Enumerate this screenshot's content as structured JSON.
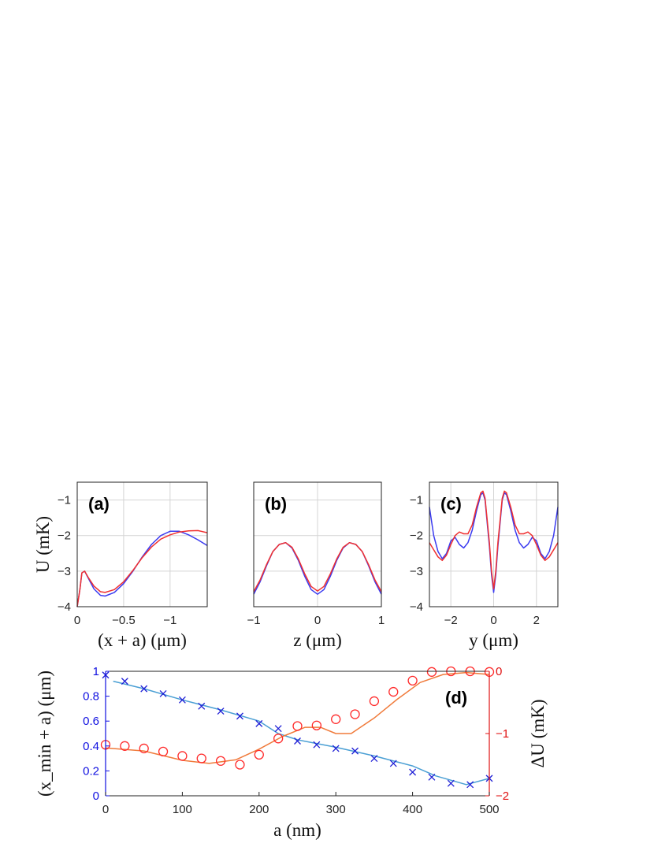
{
  "chart_data": [
    {
      "id": "a",
      "type": "line",
      "panel_label": "(a)",
      "xlabel": "(x + a) (μm)",
      "ylabel": "U (mK)",
      "xlim": [
        0,
        -1.4
      ],
      "ylim": [
        -4,
        -0.5
      ],
      "xticks": [
        0,
        -0.5,
        -1
      ],
      "xtick_labels": [
        "0",
        "−0.5",
        "−1"
      ],
      "yticks": [
        -4,
        -3,
        -2,
        -1
      ],
      "ytick_labels": [
        "−4",
        "−3",
        "−2",
        "−1"
      ],
      "grid": true,
      "series": [
        {
          "color": "#3b3bf0",
          "x": [
            0.0,
            -0.03,
            -0.05,
            -0.08,
            -0.12,
            -0.18,
            -0.25,
            -0.3,
            -0.4,
            -0.5,
            -0.6,
            -0.7,
            -0.8,
            -0.9,
            -1.0,
            -1.1,
            -1.2,
            -1.3,
            -1.4
          ],
          "y": [
            -4.0,
            -3.5,
            -3.05,
            -3.0,
            -3.2,
            -3.5,
            -3.68,
            -3.7,
            -3.6,
            -3.35,
            -3.0,
            -2.6,
            -2.25,
            -2.0,
            -1.88,
            -1.88,
            -1.98,
            -2.12,
            -2.28
          ]
        },
        {
          "color": "#f03030",
          "x": [
            0.0,
            -0.03,
            -0.05,
            -0.08,
            -0.12,
            -0.18,
            -0.25,
            -0.3,
            -0.4,
            -0.5,
            -0.6,
            -0.7,
            -0.8,
            -0.9,
            -1.0,
            -1.1,
            -1.2,
            -1.3,
            -1.4
          ],
          "y": [
            -4.0,
            -3.5,
            -3.05,
            -3.0,
            -3.18,
            -3.42,
            -3.58,
            -3.6,
            -3.52,
            -3.3,
            -2.98,
            -2.62,
            -2.32,
            -2.1,
            -1.98,
            -1.9,
            -1.87,
            -1.86,
            -1.92
          ]
        }
      ]
    },
    {
      "id": "b",
      "type": "line",
      "panel_label": "(b)",
      "xlabel": "z (μm)",
      "ylabel": "",
      "xlim": [
        -1,
        1
      ],
      "ylim": [
        -4,
        -0.5
      ],
      "xticks": [
        -1,
        0,
        1
      ],
      "xtick_labels": [
        "−1",
        "0",
        "1"
      ],
      "yticks": [
        -4,
        -3,
        -2,
        -1
      ],
      "ytick_labels": [],
      "grid": true,
      "series": [
        {
          "color": "#3b3bf0",
          "x": [
            -1.0,
            -0.9,
            -0.8,
            -0.7,
            -0.6,
            -0.5,
            -0.4,
            -0.3,
            -0.2,
            -0.1,
            0.0,
            0.1,
            0.2,
            0.3,
            0.4,
            0.5,
            0.6,
            0.7,
            0.8,
            0.9,
            1.0
          ],
          "y": [
            -3.65,
            -3.3,
            -2.85,
            -2.45,
            -2.25,
            -2.2,
            -2.35,
            -2.7,
            -3.15,
            -3.52,
            -3.65,
            -3.52,
            -3.15,
            -2.7,
            -2.35,
            -2.2,
            -2.25,
            -2.45,
            -2.85,
            -3.3,
            -3.65
          ]
        },
        {
          "color": "#f03030",
          "x": [
            -1.0,
            -0.9,
            -0.8,
            -0.7,
            -0.6,
            -0.5,
            -0.4,
            -0.3,
            -0.2,
            -0.1,
            0.0,
            0.1,
            0.2,
            0.3,
            0.4,
            0.5,
            0.6,
            0.7,
            0.8,
            0.9,
            1.0
          ],
          "y": [
            -3.58,
            -3.25,
            -2.82,
            -2.45,
            -2.25,
            -2.2,
            -2.33,
            -2.66,
            -3.08,
            -3.43,
            -3.56,
            -3.43,
            -3.08,
            -2.66,
            -2.33,
            -2.2,
            -2.25,
            -2.45,
            -2.82,
            -3.25,
            -3.58
          ]
        }
      ]
    },
    {
      "id": "c",
      "type": "line",
      "panel_label": "(c)",
      "xlabel": "y (μm)",
      "ylabel": "",
      "xlim": [
        -3,
        3
      ],
      "ylim": [
        -4,
        -0.5
      ],
      "xticks": [
        -2,
        0,
        2
      ],
      "xtick_labels": [
        "−2",
        "0",
        "2"
      ],
      "yticks": [
        -4,
        -3,
        -2,
        -1
      ],
      "ytick_labels": [
        "−4",
        "−3",
        "−2",
        "−1"
      ],
      "grid": true,
      "series": [
        {
          "color": "#3b3bf0",
          "x": [
            -3.0,
            -2.8,
            -2.6,
            -2.4,
            -2.2,
            -2.0,
            -1.8,
            -1.6,
            -1.4,
            -1.2,
            -1.0,
            -0.8,
            -0.6,
            -0.5,
            -0.4,
            -0.2,
            -0.1,
            0.0,
            0.1,
            0.2,
            0.4,
            0.5,
            0.6,
            0.8,
            1.0,
            1.2,
            1.4,
            1.6,
            1.8,
            2.0,
            2.2,
            2.4,
            2.6,
            2.8,
            3.0
          ],
          "y": [
            -1.2,
            -2.0,
            -2.45,
            -2.65,
            -2.5,
            -2.15,
            -2.05,
            -2.25,
            -2.35,
            -2.2,
            -1.85,
            -1.3,
            -0.85,
            -0.8,
            -1.0,
            -2.3,
            -3.1,
            -3.6,
            -3.1,
            -2.3,
            -1.0,
            -0.8,
            -0.85,
            -1.3,
            -1.85,
            -2.2,
            -2.35,
            -2.25,
            -2.05,
            -2.15,
            -2.5,
            -2.65,
            -2.45,
            -2.0,
            -1.2
          ]
        },
        {
          "color": "#f03030",
          "x": [
            -3.0,
            -2.8,
            -2.6,
            -2.4,
            -2.2,
            -2.0,
            -1.8,
            -1.6,
            -1.4,
            -1.2,
            -1.0,
            -0.8,
            -0.6,
            -0.5,
            -0.4,
            -0.2,
            -0.1,
            0.0,
            0.1,
            0.2,
            0.4,
            0.5,
            0.6,
            0.8,
            1.0,
            1.2,
            1.4,
            1.6,
            1.8,
            2.0,
            2.2,
            2.4,
            2.6,
            2.8,
            3.0
          ],
          "y": [
            -2.2,
            -2.4,
            -2.6,
            -2.7,
            -2.55,
            -2.25,
            -2.0,
            -1.9,
            -1.95,
            -1.95,
            -1.7,
            -1.2,
            -0.8,
            -0.75,
            -0.95,
            -2.2,
            -3.0,
            -3.5,
            -3.0,
            -2.2,
            -0.95,
            -0.75,
            -0.8,
            -1.2,
            -1.7,
            -1.95,
            -1.95,
            -1.9,
            -2.0,
            -2.25,
            -2.55,
            -2.7,
            -2.6,
            -2.4,
            -2.2
          ]
        }
      ]
    },
    {
      "id": "d",
      "type": "scatter",
      "panel_label": "(d)",
      "xlabel": "a (nm)",
      "ylabel_left": "(x_min + a) (μm)",
      "ylabel_right": "ΔU (mK)",
      "xlim": [
        0,
        500
      ],
      "ylim_left": [
        0,
        1
      ],
      "ylim_right": [
        -2,
        0
      ],
      "xticks": [
        0,
        100,
        200,
        300,
        400,
        500
      ],
      "xtick_labels": [
        "0",
        "100",
        "200",
        "300",
        "400",
        "500"
      ],
      "yticks_left": [
        0,
        0.2,
        0.4,
        0.6,
        0.8,
        1
      ],
      "ytick_labels_left": [
        "0",
        "0.2",
        "0.4",
        "0.6",
        "0.8",
        "1"
      ],
      "yticks_right": [
        -2,
        -1,
        0
      ],
      "ytick_labels_right": [
        "−2",
        "−1",
        "0"
      ],
      "grid": false,
      "x": [
        0,
        25,
        50,
        75,
        100,
        125,
        150,
        175,
        200,
        225,
        250,
        275,
        300,
        325,
        350,
        375,
        400,
        425,
        450,
        475,
        500
      ],
      "markers_x": {
        "color": "#1f1fd6",
        "axis": "left",
        "y": [
          0.97,
          0.92,
          0.86,
          0.82,
          0.77,
          0.72,
          0.68,
          0.64,
          0.58,
          0.54,
          0.44,
          0.41,
          0.38,
          0.36,
          0.3,
          0.26,
          0.19,
          0.15,
          0.1,
          0.09,
          0.14
        ]
      },
      "markers_o": {
        "color": "#ff2a2a",
        "axis": "right",
        "y": [
          -1.18,
          -1.2,
          -1.24,
          -1.29,
          -1.36,
          -1.4,
          -1.44,
          -1.5,
          -1.34,
          -1.08,
          -0.88,
          -0.87,
          -0.77,
          -0.69,
          -0.48,
          -0.33,
          -0.15,
          -0.01,
          0.0,
          0.0,
          -0.01
        ]
      },
      "fit_left": {
        "color": "#4a9fd4",
        "axis": "left",
        "x": [
          10,
          50,
          100,
          150,
          200,
          225,
          250,
          300,
          350,
          400,
          430,
          470,
          500
        ],
        "y": [
          0.92,
          0.86,
          0.77,
          0.69,
          0.6,
          0.5,
          0.45,
          0.39,
          0.32,
          0.24,
          0.16,
          0.09,
          0.14
        ]
      },
      "fit_right": {
        "color": "#f07a3a",
        "axis": "right",
        "x": [
          0,
          50,
          100,
          135,
          170,
          200,
          230,
          260,
          280,
          300,
          320,
          350,
          380,
          410,
          440,
          470,
          500
        ],
        "y": [
          -1.23,
          -1.28,
          -1.43,
          -1.48,
          -1.42,
          -1.25,
          -1.05,
          -0.9,
          -0.9,
          -1.0,
          -1.0,
          -0.75,
          -0.45,
          -0.18,
          -0.05,
          -0.02,
          -0.05
        ]
      }
    }
  ]
}
